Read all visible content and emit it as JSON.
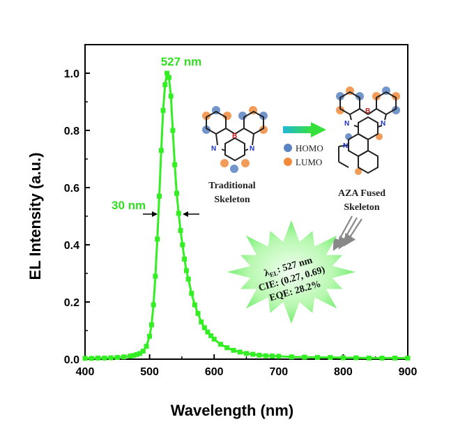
{
  "colors": {
    "curve": "#33ee22",
    "green_text": "#33dd22",
    "homo": "#5a84c4",
    "lumo": "#f28a3c",
    "nitrogen": "#1a2fd0",
    "boron": "#d01a1a",
    "bond": "#222222",
    "burst_inner": "#e8ffe8",
    "burst_outer": "#55ee55"
  },
  "chart_data": {
    "type": "line",
    "title": "",
    "xlabel": "Wavelength (nm)",
    "ylabel": "EL Intensity (a.u.)",
    "xlim": [
      400,
      900
    ],
    "ylim": [
      0,
      1.05
    ],
    "x_ticks": [
      400,
      500,
      600,
      700,
      800,
      900
    ],
    "y_ticks": [
      "0.0",
      "0.2",
      "0.4",
      "0.6",
      "0.8",
      "1.0"
    ],
    "y_tick_values": [
      0,
      0.2,
      0.4,
      0.6,
      0.8,
      1.0
    ],
    "grid": false,
    "legend": "none",
    "series": [
      {
        "peak_nm": 527,
        "fwhm_nm": 30,
        "x": [
          400,
          410,
          420,
          430,
          440,
          450,
          460,
          470,
          475,
          480,
          485,
          490,
          495,
          500,
          503,
          506,
          509,
          512,
          515,
          518,
          521,
          524,
          527,
          530,
          533,
          536,
          539,
          542,
          545,
          548,
          551,
          554,
          557,
          560,
          565,
          570,
          575,
          580,
          585,
          590,
          595,
          600,
          610,
          620,
          630,
          640,
          650,
          660,
          670,
          680,
          690,
          700,
          720,
          740,
          760,
          780,
          800,
          820,
          840,
          860,
          880,
          900
        ],
        "y": [
          0.003,
          0.003,
          0.004,
          0.004,
          0.005,
          0.006,
          0.008,
          0.011,
          0.013,
          0.016,
          0.02,
          0.028,
          0.045,
          0.08,
          0.12,
          0.19,
          0.29,
          0.42,
          0.57,
          0.73,
          0.87,
          0.96,
          1.0,
          0.985,
          0.92,
          0.8,
          0.68,
          0.58,
          0.51,
          0.45,
          0.4,
          0.35,
          0.31,
          0.28,
          0.23,
          0.19,
          0.16,
          0.13,
          0.11,
          0.095,
          0.082,
          0.07,
          0.052,
          0.04,
          0.031,
          0.025,
          0.02,
          0.017,
          0.014,
          0.012,
          0.011,
          0.01,
          0.008,
          0.007,
          0.006,
          0.006,
          0.005,
          0.005,
          0.004,
          0.004,
          0.004,
          0.004
        ]
      }
    ],
    "annotations": {
      "peak_label": "527 nm",
      "fwhm_label": "30 nm"
    }
  },
  "inset": {
    "traditional_label_line1": "Traditional",
    "traditional_label_line2": "Skeleton",
    "fused_label_line1": "AZA Fused",
    "fused_label_line2": "Skeleton",
    "homo_label": "HOMO",
    "lumo_label": "LUMO",
    "atom_n": "N",
    "atom_b": "B"
  },
  "burst": {
    "line1_symbol": "λ",
    "line1_subscript": "EL",
    "line1_value": ": 527 nm",
    "line2": "CIE: (0.27, 0.69)",
    "line3": "EQE: 28.2%"
  }
}
